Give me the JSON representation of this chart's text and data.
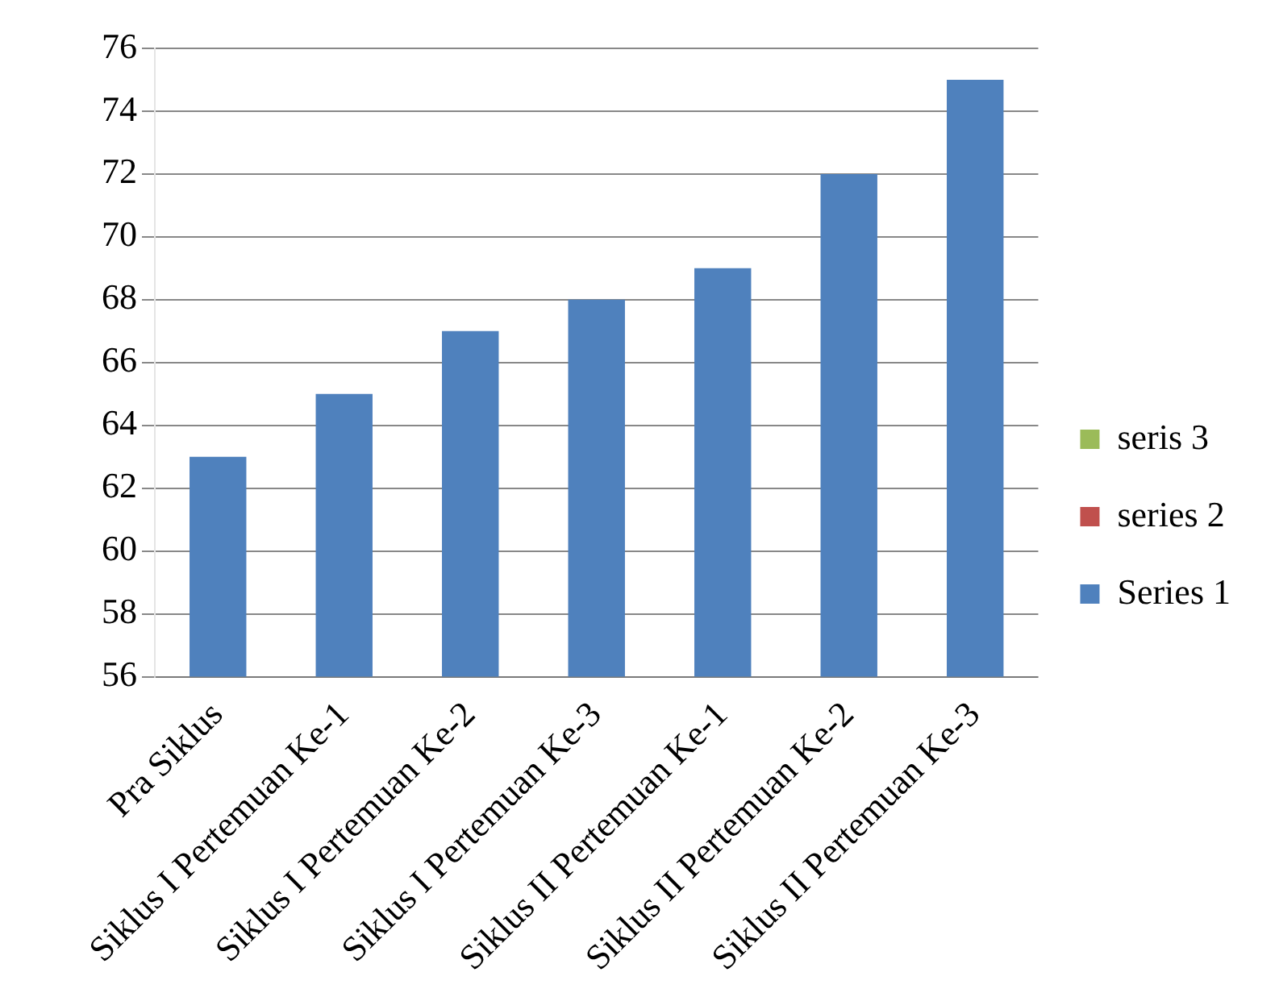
{
  "chart_data": {
    "type": "bar",
    "categories": [
      "Pra Siklus",
      "Siklus I Pertemuan Ke-1",
      "Siklus I Pertemuan Ke-2",
      "Siklus I Pertemuan Ke-3",
      "Siklus II Pertemuan Ke-1",
      "Siklus II Pertemuan Ke-2",
      "Siklus II Pertemuan Ke-3"
    ],
    "series": [
      {
        "name": "Series 1",
        "color": "#4f81bd",
        "values": [
          63,
          65,
          67,
          68,
          69,
          72,
          75
        ]
      },
      {
        "name": "series 2",
        "color": "#c0504d",
        "values": [
          null,
          null,
          null,
          null,
          null,
          null,
          null
        ]
      },
      {
        "name": "seris 3",
        "color": "#9bbb59",
        "values": [
          null,
          null,
          null,
          null,
          null,
          null,
          null
        ]
      }
    ],
    "ylim": [
      56,
      76
    ],
    "yticks": [
      56,
      58,
      60,
      62,
      64,
      66,
      68,
      70,
      72,
      74,
      76
    ],
    "grid": "y",
    "legend": "right"
  }
}
